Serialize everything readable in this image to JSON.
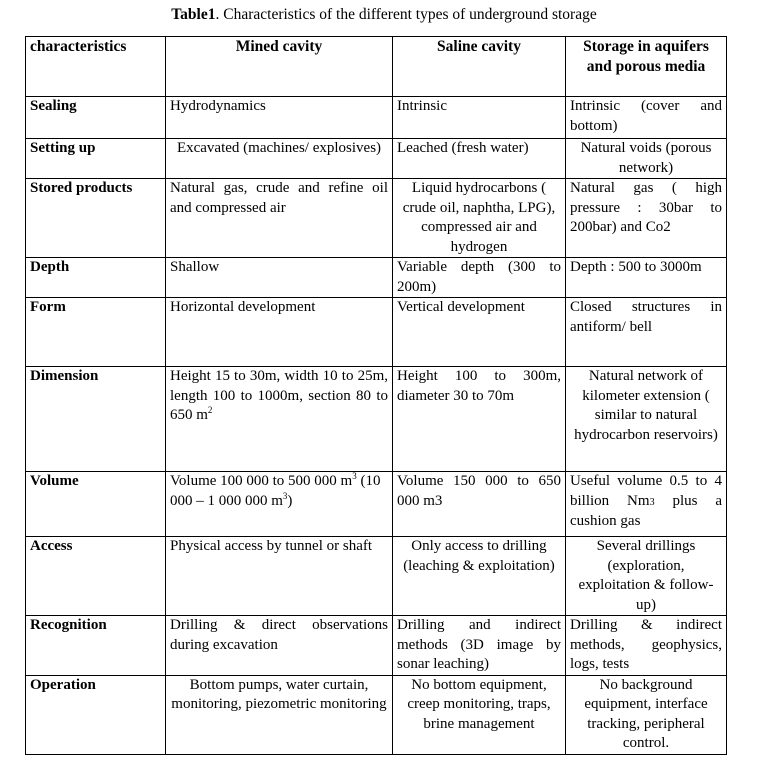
{
  "title": {
    "label": "Table1",
    "text": ". Characteristics of the different types of underground storage"
  },
  "headers": [
    "characteristics",
    "Mined cavity",
    "Saline cavity",
    "Storage in aquifers and porous media"
  ],
  "rows": [
    {
      "label": "Sealing",
      "cells": [
        [
          {
            "t": "Hydrodynamics"
          }
        ],
        [
          {
            "t": "Intrinsic"
          }
        ],
        [
          {
            "t": "Intrinsic (cover and bottom)"
          }
        ]
      ]
    },
    {
      "label": "Setting up",
      "cells": [
        [
          {
            "t": "Excavated (machines/ explosives)"
          }
        ],
        [
          {
            "t": "Leached (fresh water)"
          }
        ],
        [
          {
            "t": "Natural voids (porous network)"
          }
        ]
      ]
    },
    {
      "label": "Stored products",
      "cells": [
        [
          {
            "t": "Natural gas, crude and refine oil and compressed air"
          }
        ],
        [
          {
            "t": "Liquid hydrocarbons ( crude oil, naphtha, LPG), compressed air and hydrogen"
          }
        ],
        [
          {
            "t": "Natural gas ( high pressure : 30bar to 200bar) and Co2"
          }
        ]
      ]
    },
    {
      "label": "Depth",
      "cells": [
        [
          {
            "t": "Shallow"
          }
        ],
        [
          {
            "t": "Variable depth (300 to 200m)"
          }
        ],
        [
          {
            "t": "Depth : 500 to 3000m"
          }
        ]
      ]
    },
    {
      "label": "Form",
      "cells": [
        [
          {
            "t": "Horizontal development"
          }
        ],
        [
          {
            "t": "Vertical development"
          }
        ],
        [
          {
            "t": "Closed structures in antiform/ bell"
          }
        ]
      ]
    },
    {
      "label": "Dimension",
      "cells": [
        [
          {
            "t": "Height 15 to 30m, width 10 to 25m, length 100 to 1000m, section 80 to 650 m"
          },
          {
            "sup": "2"
          }
        ],
        [
          {
            "t": "Height 100 to 300m, diameter 30 to 70m"
          }
        ],
        [
          {
            "t": "Natural network of kilometer extension ( similar to natural hydrocarbon reservoirs)"
          }
        ]
      ]
    },
    {
      "label": "Volume",
      "cells": [
        [
          {
            "t": "Volume 100 000 to 500 000 m"
          },
          {
            "sup": "3"
          },
          {
            "t": " (10 000 – 1 000 000 m"
          },
          {
            "sup": "3"
          },
          {
            "t": ")"
          }
        ],
        [
          {
            "t": "Volume 150 000 to 650 000 m3"
          }
        ],
        [
          {
            "t": "Useful volume 0.5 to 4 billion Nm"
          },
          {
            "sub": "3"
          },
          {
            "t": " plus a cushion gas"
          }
        ]
      ]
    },
    {
      "label": "Access",
      "cells": [
        [
          {
            "t": "Physical access by tunnel or shaft"
          }
        ],
        [
          {
            "t": "Only access to drilling (leaching & exploitation)"
          }
        ],
        [
          {
            "t": "Several drillings (exploration, exploitation & follow-up)"
          }
        ]
      ]
    },
    {
      "label": "Recognition",
      "cells": [
        [
          {
            "t": "Drilling & direct observations during excavation"
          }
        ],
        [
          {
            "t": "Drilling and indirect methods (3D image by sonar leaching)"
          }
        ],
        [
          {
            "t": "Drilling & indirect methods, geophysics, logs, tests"
          }
        ]
      ]
    },
    {
      "label": "Operation",
      "cells": [
        [
          {
            "t": "Bottom pumps, water curtain, monitoring, piezometric monitoring"
          }
        ],
        [
          {
            "t": "No bottom equipment, creep monitoring, traps, brine management"
          }
        ],
        [
          {
            "t": "No background equipment, interface tracking, peripheral control."
          }
        ]
      ]
    }
  ]
}
